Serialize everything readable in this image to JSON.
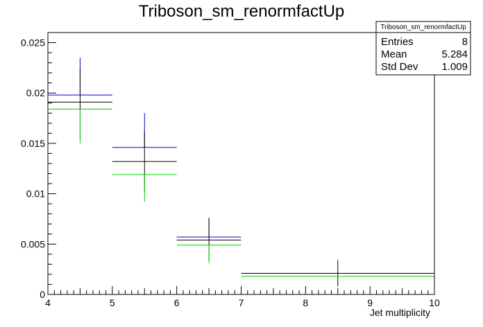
{
  "chart_data": {
    "type": "scatter",
    "title": "Triboson_sm_renormfactUp",
    "xlabel": "Jet multiplicity",
    "ylabel": "",
    "xlim": [
      4,
      10
    ],
    "ylim": [
      0,
      0.026
    ],
    "x_ticks": [
      4,
      5,
      6,
      7,
      8,
      9,
      10
    ],
    "x_tick_labels": [
      "4",
      "5",
      "6",
      "7",
      "8",
      "9",
      "10"
    ],
    "y_ticks": [
      0,
      0.005,
      0.01,
      0.015,
      0.02,
      0.025
    ],
    "y_tick_labels": [
      "0",
      "0.005",
      "0.01",
      "0.015",
      "0.02",
      "0.025"
    ],
    "grid": false,
    "legend": "none",
    "series": [
      {
        "color": "#0000cc",
        "points": [
          {
            "xlow": 4,
            "xhigh": 5,
            "y": 0.0198,
            "yerr_low": 0.0198,
            "yerr_high": 0.0235
          },
          {
            "xlow": 5,
            "xhigh": 6,
            "y": 0.0146,
            "yerr_low": 0.0146,
            "yerr_high": 0.018
          },
          {
            "xlow": 6,
            "xhigh": 7,
            "y": 0.0057,
            "yerr_low": 0.0057,
            "yerr_high": 0.0076
          }
        ]
      },
      {
        "color": "#000000",
        "points": [
          {
            "xlow": 4,
            "xhigh": 5,
            "y": 0.0191,
            "yerr_low": 0.0155,
            "yerr_high": 0.0225
          },
          {
            "xlow": 5,
            "xhigh": 6,
            "y": 0.0132,
            "yerr_low": 0.0102,
            "yerr_high": 0.0162
          },
          {
            "xlow": 6,
            "xhigh": 7,
            "y": 0.0054,
            "yerr_low": 0.0034,
            "yerr_high": 0.0076
          },
          {
            "xlow": 7,
            "xhigh": 10,
            "y": 0.0021,
            "yerr_low": 0.0008,
            "yerr_high": 0.0034
          }
        ]
      },
      {
        "color": "#00cc00",
        "points": [
          {
            "xlow": 4,
            "xhigh": 5,
            "y": 0.0184,
            "yerr_low": 0.015,
            "yerr_high": 0.0184
          },
          {
            "xlow": 5,
            "xhigh": 6,
            "y": 0.0119,
            "yerr_low": 0.0092,
            "yerr_high": 0.0119
          },
          {
            "xlow": 6,
            "xhigh": 7,
            "y": 0.0049,
            "yerr_low": 0.0031,
            "yerr_high": 0.0049
          },
          {
            "xlow": 7,
            "xhigh": 10,
            "y": 0.0018,
            "yerr_low": 0.0018,
            "yerr_high": 0.0018
          }
        ]
      }
    ]
  },
  "stats_box": {
    "title": "Triboson_sm_renormfactUp",
    "rows": [
      {
        "label": "Entries",
        "value": "8"
      },
      {
        "label": "Mean",
        "value": "5.284"
      },
      {
        "label": "Std Dev",
        "value": "1.009"
      }
    ]
  }
}
